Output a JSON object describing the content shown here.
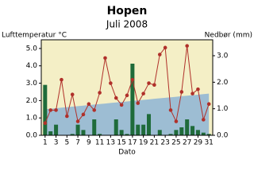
{
  "chart_data": {
    "type": "combo",
    "title": "Hopen",
    "subtitle": "Juli 2008",
    "ylabel": "Lufttemperatur °C",
    "y2label": "Nedbør (mm)",
    "xlabel": "Dato",
    "x": [
      1,
      2,
      3,
      4,
      5,
      6,
      7,
      8,
      9,
      10,
      11,
      12,
      13,
      14,
      15,
      16,
      17,
      18,
      19,
      20,
      21,
      22,
      23,
      24,
      25,
      26,
      27,
      28,
      29,
      30,
      31
    ],
    "xlim": [
      0.3,
      31.7
    ],
    "xticks": [
      1,
      3,
      5,
      7,
      9,
      11,
      13,
      15,
      17,
      19,
      21,
      23,
      25,
      27,
      29,
      31
    ],
    "ylim": [
      0,
      5.5
    ],
    "yticks": [
      {
        "value": 0,
        "label": "0.0"
      },
      {
        "value": 1,
        "label": "1.0"
      },
      {
        "value": 2,
        "label": "2.0"
      },
      {
        "value": 3,
        "label": "3.0"
      },
      {
        "value": 4,
        "label": "4.0"
      },
      {
        "value": 5,
        "label": "5.0"
      }
    ],
    "y2lim": [
      0,
      3.6
    ],
    "y2ticks": [
      {
        "value": 0,
        "label": "0.0"
      },
      {
        "value": 1,
        "label": "1.0"
      },
      {
        "value": 2,
        "label": "2.0"
      },
      {
        "value": 3,
        "label": "3.0"
      }
    ],
    "background": "#f4efc6",
    "series": [
      {
        "type": "area",
        "color": "#9dbdd3",
        "values": [
          1.5,
          1.53,
          1.56,
          1.59,
          1.62,
          1.65,
          1.68,
          1.71,
          1.74,
          1.77,
          1.8,
          1.83,
          1.86,
          1.89,
          1.92,
          1.95,
          1.98,
          2.01,
          2.04,
          2.07,
          2.1,
          2.13,
          2.16,
          2.19,
          2.22,
          2.25,
          2.28,
          2.31,
          2.34,
          2.37,
          2.4
        ]
      },
      {
        "type": "bar",
        "axis": "y2",
        "color": "#1f6b3a",
        "values": [
          1.9,
          0.15,
          0.4,
          0,
          0,
          0.05,
          0.4,
          0.2,
          0,
          0.6,
          0.05,
          0,
          0,
          0.6,
          0.2,
          0.05,
          2.7,
          0.4,
          0.4,
          0.8,
          0,
          0.2,
          0,
          0.05,
          0.2,
          0.3,
          0.6,
          0.35,
          0.2,
          0.1,
          0.05
        ]
      },
      {
        "type": "line",
        "color": "#b0302a",
        "values": [
          0.7,
          1.45,
          1.45,
          3.2,
          1.1,
          2.35,
          0.8,
          1.2,
          1.8,
          1.45,
          2.45,
          4.45,
          3.0,
          2.15,
          1.75,
          2.3,
          3.2,
          1.85,
          2.4,
          3.0,
          2.9,
          4.65,
          5.05,
          1.45,
          0.8,
          2.5,
          5.15,
          2.4,
          2.65,
          0.9,
          1.8
        ]
      }
    ]
  }
}
